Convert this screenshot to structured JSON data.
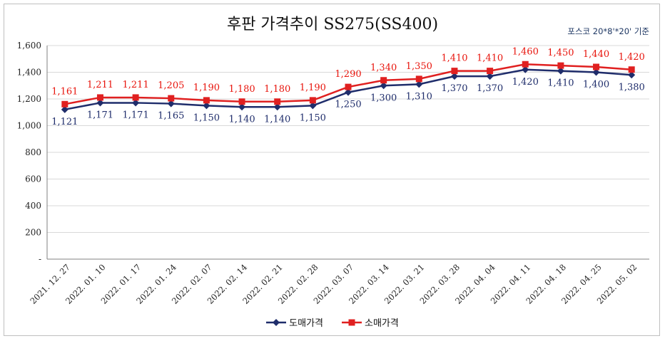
{
  "chart_data": {
    "type": "line",
    "title": "후판 가격추이 SS275(SS400)",
    "note": "포스코 20*8'*20' 기준",
    "categories": [
      "2021. 12. 27",
      "2022. 01. 10",
      "2022. 01. 17",
      "2022. 01. 24",
      "2022. 02. 07",
      "2022. 02. 14",
      "2022. 02. 21",
      "2022. 02. 28",
      "2022. 03. 07",
      "2022. 03. 14",
      "2022. 03. 21",
      "2022. 03. 28",
      "2022. 04. 04",
      "2022. 04. 11",
      "2022. 04. 18",
      "2022. 04. 25",
      "2022. 05. 02"
    ],
    "series": [
      {
        "name": "도매가격",
        "color": "#1f2d6b",
        "marker": "diamond",
        "values": [
          1121,
          1171,
          1171,
          1165,
          1150,
          1140,
          1140,
          1150,
          1250,
          1300,
          1310,
          1370,
          1370,
          1420,
          1410,
          1400,
          1380
        ],
        "labels": [
          "1,121",
          "1,171",
          "1,171",
          "1,165",
          "1,150",
          "1,140",
          "1,140",
          "1,150",
          "1,250",
          "1,300",
          "1,310",
          "1,370",
          "1,370",
          "1,420",
          "1,410",
          "1,400",
          "1,380"
        ]
      },
      {
        "name": "소매가격",
        "color": "#e02020",
        "marker": "square",
        "values": [
          1161,
          1211,
          1211,
          1205,
          1190,
          1180,
          1180,
          1190,
          1290,
          1340,
          1350,
          1410,
          1410,
          1460,
          1450,
          1440,
          1420
        ],
        "labels": [
          "1,161",
          "1,211",
          "1,211",
          "1,205",
          "1,190",
          "1,180",
          "1,180",
          "1,190",
          "1,290",
          "1,340",
          "1,350",
          "1,410",
          "1,410",
          "1,460",
          "1,450",
          "1,440",
          "1,420"
        ]
      }
    ],
    "ylim": [
      0,
      1600
    ],
    "yticks": [
      0,
      200,
      400,
      600,
      800,
      1000,
      1200,
      1400,
      1600
    ],
    "ytick_labels": [
      "-",
      "200",
      "400",
      "600",
      "800",
      "1,000",
      "1,200",
      "1,400",
      "1,600"
    ],
    "grid": "horizontal",
    "legend": "bottom"
  }
}
